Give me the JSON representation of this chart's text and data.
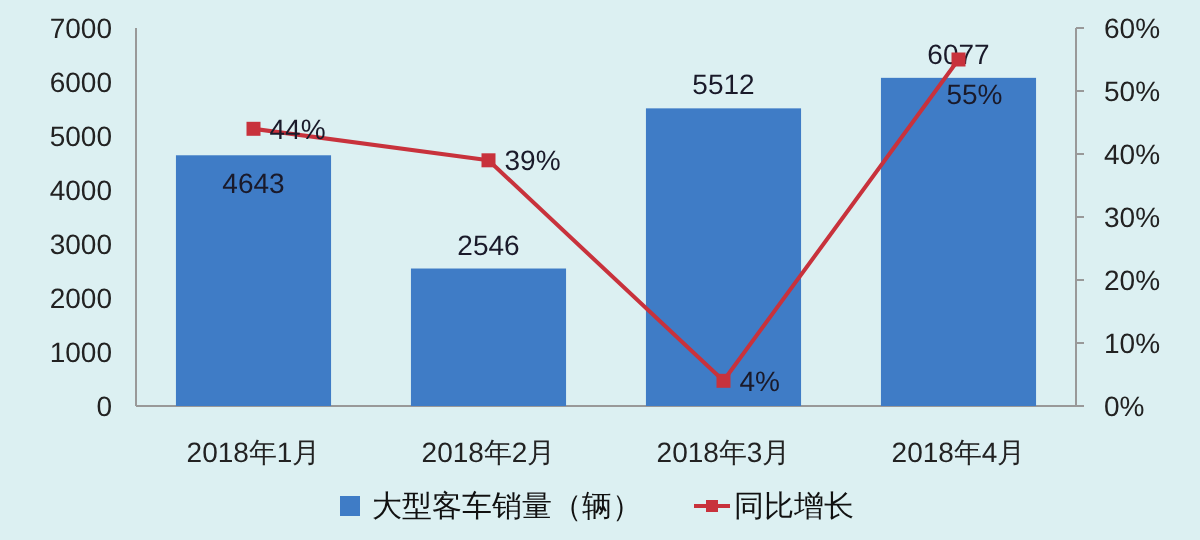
{
  "chart_data": {
    "type": "bar",
    "categories": [
      "2018年1月",
      "2018年2月",
      "2018年3月",
      "2018年4月"
    ],
    "series": [
      {
        "name": "大型客车销量（辆）",
        "color": "#3f7cc6",
        "values": [
          4643,
          2546,
          5512,
          6077
        ],
        "data_labels": true
      },
      {
        "name": "同比增长",
        "type": "line",
        "axis": "y2",
        "color": "#c8323c",
        "marker": "square",
        "values": [
          44,
          39,
          4,
          55
        ],
        "value_labels": [
          "44%",
          "39%",
          "4%",
          "55%"
        ]
      }
    ],
    "ylim": [
      0,
      7000
    ],
    "yticks": [
      0,
      1000,
      2000,
      3000,
      4000,
      5000,
      6000,
      7000
    ],
    "y2lim": [
      0,
      60
    ],
    "y2ticks": [
      {
        "value": 0,
        "label": "0%"
      },
      {
        "value": 10,
        "label": "10%"
      },
      {
        "value": 20,
        "label": "20%"
      },
      {
        "value": 30,
        "label": "30%"
      },
      {
        "value": 40,
        "label": "40%"
      },
      {
        "value": 50,
        "label": "50%"
      },
      {
        "value": 60,
        "label": "60%"
      }
    ],
    "grid": false,
    "legend": "bottom"
  }
}
